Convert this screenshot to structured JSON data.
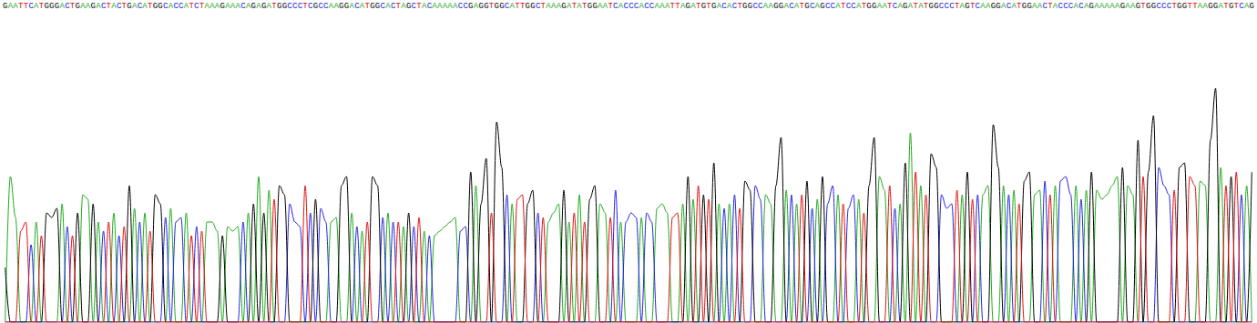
{
  "chart_data": {
    "type": "chromatogram",
    "sequence": "GAATTCATGGGACTGAAGACTACTGACATGGCACCATCTAAAGAAACAGAGATGGCCCTCGCCAAGGACATGGCACTAGCTACAAAAACCGAGGTGGCATTGGCTAAAGATATGGAATCACCCACCAAATTAGATGTGACACTGGCCAAGGACATGCAGCCATCCATGGAATCAGATATGGCCCTAGTCAAGGACATGGAACTACCCACAGAAAAAGAAGTGGCCCTGGTTAAGGATGTCAG",
    "values": [
      60,
      160,
      115,
      100,
      110,
      85,
      110,
      95,
      120,
      115,
      125,
      130,
      105,
      95,
      120,
      140,
      135,
      130,
      110,
      100,
      110,
      120,
      95,
      105,
      150,
      125,
      110,
      120,
      100,
      140,
      130,
      115,
      125,
      110,
      115,
      120,
      95,
      105,
      100,
      110,
      110,
      100,
      95,
      105,
      100,
      105,
      110,
      120,
      130,
      160,
      120,
      145,
      135,
      150,
      140,
      130,
      110,
      105,
      150,
      120,
      135,
      125,
      110,
      110,
      115,
      150,
      160,
      120,
      105,
      100,
      110,
      160,
      150,
      115,
      120,
      110,
      110,
      105,
      120,
      105,
      115,
      100,
      95,
      95,
      100,
      105,
      110,
      115,
      100,
      105,
      165,
      150,
      130,
      180,
      120,
      220,
      170,
      140,
      130,
      135,
      140,
      130,
      145,
      120,
      115,
      110,
      120,
      130,
      145,
      110,
      120,
      140,
      110,
      135,
      150,
      130,
      120,
      115,
      145,
      110,
      110,
      120,
      115,
      115,
      120,
      110,
      125,
      130,
      120,
      115,
      120,
      130,
      160,
      135,
      150,
      140,
      135,
      175,
      130,
      125,
      130,
      140,
      125,
      155,
      145,
      150,
      135,
      140,
      130,
      150,
      203,
      145,
      140,
      130,
      140,
      155,
      125,
      135,
      160,
      130,
      150,
      140,
      130,
      125,
      140,
      135,
      120,
      150,
      203,
      160,
      145,
      150,
      125,
      130,
      175,
      208,
      165,
      150,
      140,
      185,
      170,
      140,
      125,
      130,
      145,
      140,
      165,
      135,
      140,
      140,
      150,
      217,
      170,
      150,
      140,
      145,
      130,
      155,
      165,
      140,
      145,
      155,
      140,
      150,
      155,
      160,
      140,
      150,
      135,
      145,
      165,
      145,
      135,
      140,
      150,
      160,
      170,
      150,
      140,
      200,
      160,
      165,
      227,
      170,
      150,
      140,
      145,
      170,
      175,
      160,
      150,
      155,
      150,
      200,
      257,
      170,
      150,
      160,
      165,
      140,
      150,
      165
    ],
    "series": [
      {
        "name": "A",
        "color": "#1faa1f"
      },
      {
        "name": "C",
        "color": "#2323e0"
      },
      {
        "name": "G",
        "color": "#000000"
      },
      {
        "name": "T",
        "color": "#e01010"
      }
    ],
    "ylim": [
      0,
      340
    ],
    "tick_labels": false
  }
}
